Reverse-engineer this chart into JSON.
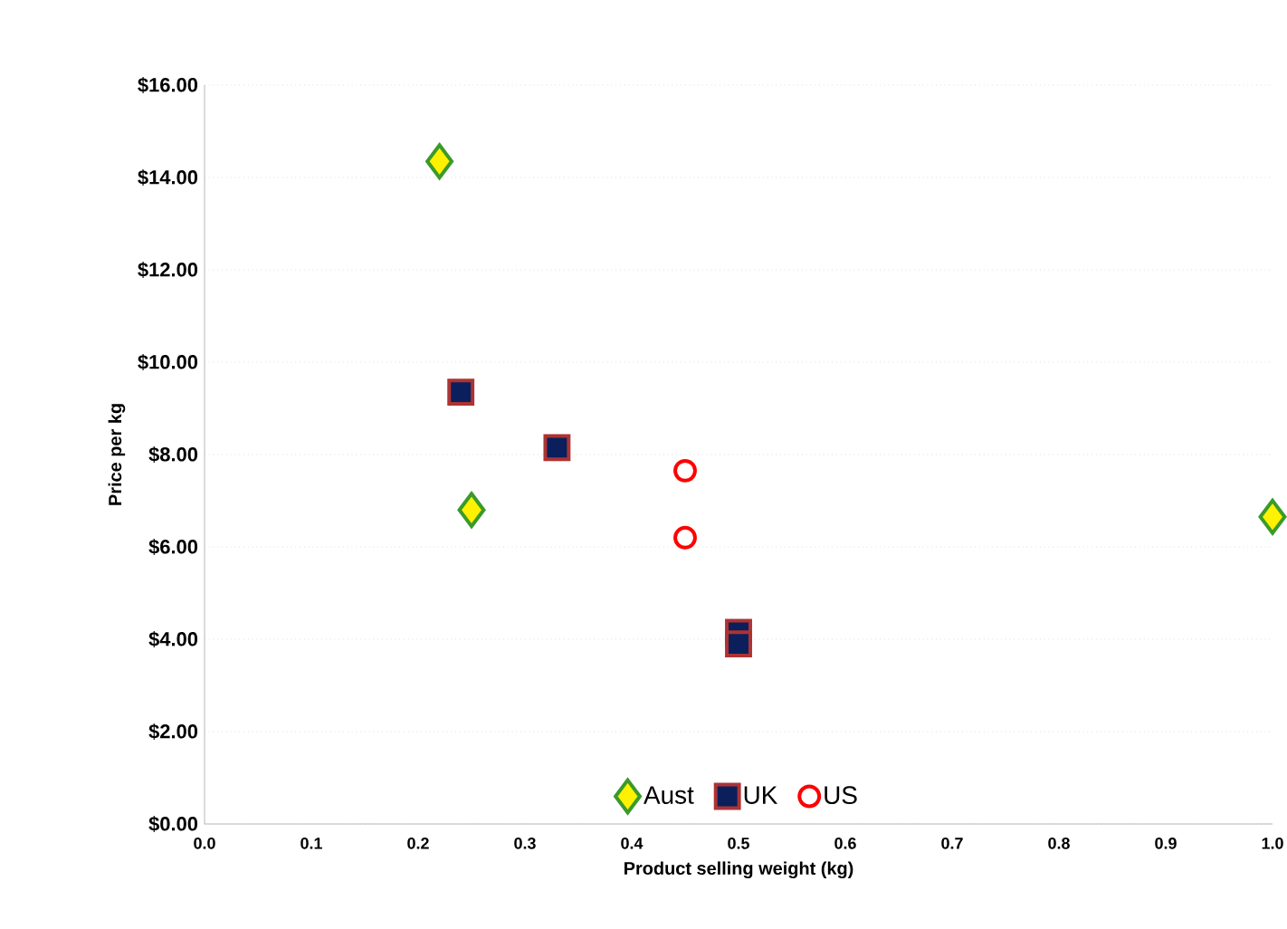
{
  "chart_data": {
    "type": "scatter",
    "xlabel": "Product selling weight  (kg)",
    "ylabel": "Price per kg",
    "xlim": [
      0,
      1
    ],
    "ylim": [
      0,
      16
    ],
    "xticks": [
      {
        "value": 0,
        "label": "0.0"
      },
      {
        "value": 0.1,
        "label": "0.1"
      },
      {
        "value": 0.2,
        "label": "0.2"
      },
      {
        "value": 0.3,
        "label": "0.3"
      },
      {
        "value": 0.4,
        "label": "0.4"
      },
      {
        "value": 0.5,
        "label": "0.5"
      },
      {
        "value": 0.6,
        "label": "0.6"
      },
      {
        "value": 0.7,
        "label": "0.7"
      },
      {
        "value": 0.8,
        "label": "0.8"
      },
      {
        "value": 0.9,
        "label": "0.9"
      },
      {
        "value": 1,
        "label": "1.0"
      }
    ],
    "yticks": [
      {
        "value": 0,
        "label": "$0.00"
      },
      {
        "value": 2,
        "label": "$2.00"
      },
      {
        "value": 4,
        "label": "$4.00"
      },
      {
        "value": 6,
        "label": "$6.00"
      },
      {
        "value": 8,
        "label": "$8.00"
      },
      {
        "value": 10,
        "label": "$10.00"
      },
      {
        "value": 12,
        "label": "$12.00"
      },
      {
        "value": 14,
        "label": "$14.00"
      },
      {
        "value": 16,
        "label": "$16.00"
      }
    ],
    "grid": "y",
    "legend": "bottom",
    "series": [
      {
        "name": "Aust",
        "color": "#3a9a2a",
        "marker": "diamond",
        "x": [
          0.22,
          0.25,
          1.0
        ],
        "values": [
          14.35,
          6.8,
          6.65
        ]
      },
      {
        "name": "UK",
        "color": "#0a1f5c",
        "marker": "square",
        "x": [
          0.24,
          0.33,
          0.5,
          0.5
        ],
        "values": [
          9.35,
          8.15,
          4.15,
          3.9
        ]
      },
      {
        "name": "US",
        "color": "#ff0000",
        "marker": "circle",
        "x": [
          0.45,
          0.45
        ],
        "values": [
          7.65,
          6.2
        ]
      }
    ]
  }
}
